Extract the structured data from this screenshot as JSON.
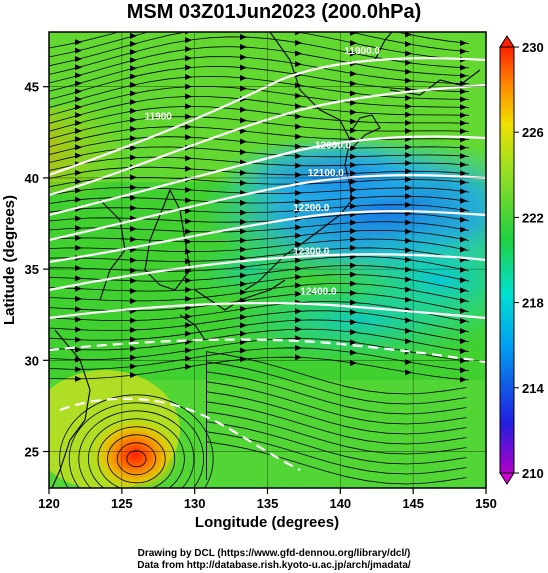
{
  "title": "MSM 03Z01Jun2023 (200.0hPa)",
  "x_axis": {
    "label": "Longitude (degrees)",
    "ticks": [
      120,
      125,
      130,
      135,
      140,
      145,
      150
    ]
  },
  "y_axis": {
    "label": "Latitude  (degrees)",
    "ticks": [
      25,
      30,
      35,
      40,
      45
    ]
  },
  "colorbar": {
    "ticks": [
      210,
      214,
      218,
      222,
      226,
      230
    ],
    "min": 210,
    "max": 230
  },
  "contour_labels": [
    "11900.0",
    "11900",
    "12000.0",
    "12100.0",
    "12200.0",
    "12300.0",
    "12400.0"
  ],
  "credits": [
    "Drawing by DCL (https://www.gfd-dennou.org/library/dcl/)",
    "Data from http://database.rish.kyoto-u.ac.jp/arch/jmadata/"
  ],
  "chart_data": {
    "type": "heatmap",
    "variable": "temperature (shading) with geopotential height contours and wind streamlines",
    "xlim": [
      120,
      150
    ],
    "ylim": [
      23,
      48
    ],
    "clim": [
      210,
      230
    ],
    "height_contours": [
      {
        "label": "11900.0",
        "lon_label": 141.5,
        "lat_label": 46.8
      },
      {
        "label": "11900",
        "lon_label": 127.5,
        "lat_label": 43.2
      },
      {
        "label": "12000.0",
        "lon_label": 139.5,
        "lat_label": 41.6
      },
      {
        "label": "12100.0",
        "lon_label": 139.0,
        "lat_label": 40.1
      },
      {
        "label": "12200.0",
        "lon_label": 138.0,
        "lat_label": 38.2
      },
      {
        "label": "12300.0",
        "lon_label": 138.0,
        "lat_label": 35.8
      },
      {
        "label": "12400.0",
        "lon_label": 138.5,
        "lat_label": 33.6
      }
    ],
    "warm_core": {
      "lon": 126.0,
      "lat": 24.6,
      "value": 230
    }
  }
}
